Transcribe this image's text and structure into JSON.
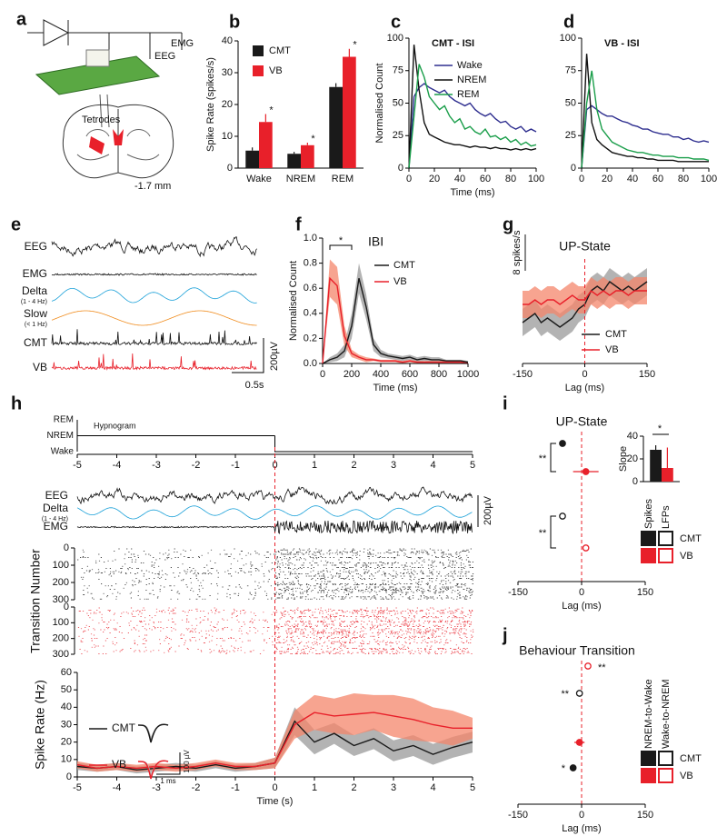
{
  "diagram": {
    "panel": "a",
    "labels": [
      "EMG",
      "EEG",
      "Tetrodes",
      "-1.7 mm"
    ]
  },
  "chart_data": [
    {
      "type": "bar",
      "panel": "b",
      "ylabel": "Spike Rate (spikes/s)",
      "categories": [
        "Wake",
        "NREM",
        "REM"
      ],
      "series": [
        {
          "name": "CMT",
          "color": "#1a1a1a",
          "values": [
            5.5,
            4.5,
            25.5
          ],
          "errors": [
            1,
            0.6,
            1.2
          ]
        },
        {
          "name": "VB",
          "color": "#e8202a",
          "values": [
            14.5,
            7.2,
            35
          ],
          "errors": [
            2.5,
            0.8,
            2.5
          ]
        }
      ],
      "ylim": [
        0,
        40
      ],
      "yticks": [
        0,
        10,
        20,
        30,
        40
      ],
      "annotations": [
        "*",
        "*",
        "*"
      ]
    },
    {
      "type": "line",
      "panel": "c",
      "title": "CMT - ISI",
      "xlabel": "Time (ms)",
      "ylabel": "Normalised Count",
      "x": [
        0,
        4,
        8,
        12,
        16,
        20,
        24,
        28,
        32,
        36,
        40,
        44,
        48,
        52,
        56,
        60,
        64,
        68,
        72,
        76,
        80,
        84,
        88,
        92,
        96,
        100
      ],
      "series": [
        {
          "name": "Wake",
          "color": "#2e2e8f",
          "values": [
            0,
            55,
            62,
            65,
            62,
            60,
            58,
            60,
            55,
            52,
            50,
            48,
            50,
            45,
            42,
            40,
            42,
            38,
            35,
            36,
            32,
            30,
            32,
            28,
            30,
            28
          ]
        },
        {
          "name": "NREM",
          "color": "#111111",
          "values": [
            0,
            95,
            60,
            35,
            26,
            24,
            22,
            20,
            19,
            18,
            18,
            17,
            16,
            17,
            16,
            16,
            15,
            16,
            15,
            15,
            14,
            15,
            14,
            15,
            14,
            15
          ]
        },
        {
          "name": "REM",
          "color": "#1a9e4a",
          "values": [
            0,
            40,
            80,
            70,
            55,
            50,
            45,
            48,
            40,
            35,
            38,
            30,
            32,
            28,
            26,
            30,
            24,
            25,
            22,
            24,
            20,
            22,
            18,
            20,
            17,
            18
          ]
        }
      ],
      "xlim": [
        0,
        100
      ],
      "xticks": [
        0,
        20,
        40,
        60,
        80,
        100
      ],
      "ylim": [
        0,
        100
      ],
      "yticks": [
        0,
        25,
        50,
        75,
        100
      ]
    },
    {
      "type": "line",
      "panel": "d",
      "title": "VB - ISI",
      "x": [
        0,
        4,
        8,
        12,
        16,
        20,
        24,
        28,
        32,
        36,
        40,
        44,
        48,
        52,
        56,
        60,
        64,
        68,
        72,
        76,
        80,
        84,
        88,
        92,
        96,
        100
      ],
      "series": [
        {
          "color": "#2e2e8f",
          "values": [
            0,
            45,
            48,
            45,
            42,
            40,
            40,
            38,
            36,
            35,
            33,
            32,
            30,
            30,
            28,
            27,
            26,
            26,
            24,
            24,
            22,
            23,
            21,
            20,
            21,
            20
          ]
        },
        {
          "color": "#111111",
          "values": [
            0,
            88,
            35,
            22,
            18,
            15,
            12,
            11,
            10,
            9,
            9,
            8,
            8,
            7,
            7,
            6,
            6,
            6,
            6,
            5,
            5,
            5,
            5,
            5,
            5,
            5
          ]
        },
        {
          "color": "#1a9e4a",
          "values": [
            0,
            50,
            75,
            45,
            30,
            25,
            20,
            18,
            16,
            14,
            13,
            12,
            12,
            11,
            10,
            10,
            9,
            9,
            9,
            8,
            8,
            8,
            7,
            7,
            7,
            6
          ]
        }
      ],
      "xlim": [
        0,
        100
      ],
      "xticks": [
        0,
        20,
        40,
        60,
        80,
        100
      ],
      "ylim": [
        0,
        100
      ],
      "yticks": [
        0,
        25,
        50,
        75,
        100
      ]
    },
    {
      "type": "traces",
      "panel": "e",
      "trace_labels": [
        {
          "label": "EEG"
        },
        {
          "label": "EMG"
        },
        {
          "label": "Delta",
          "sublabel": "(1 - 4 Hz)"
        },
        {
          "label": "Slow",
          "sublabel": "(< 1 Hz)"
        },
        {
          "label": "CMT"
        },
        {
          "label": "VB"
        }
      ],
      "scale_bars": [
        "200µV",
        "0.5s"
      ]
    },
    {
      "type": "line",
      "panel": "f",
      "title": "IBI",
      "xlabel": "Time (ms)",
      "ylabel": "Normalised Count",
      "x": [
        0,
        50,
        100,
        150,
        200,
        250,
        300,
        350,
        400,
        450,
        500,
        550,
        600,
        650,
        700,
        750,
        800,
        850,
        900,
        950,
        1000
      ],
      "series": [
        {
          "name": "CMT",
          "color": "#1a1a1a",
          "band": "#999999",
          "values": [
            0,
            0.03,
            0.05,
            0.1,
            0.3,
            0.68,
            0.45,
            0.15,
            0.08,
            0.06,
            0.05,
            0.04,
            0.05,
            0.03,
            0.04,
            0.03,
            0.03,
            0.02,
            0.02,
            0.02,
            0.01
          ],
          "errors": [
            0,
            0.02,
            0.03,
            0.05,
            0.1,
            0.12,
            0.1,
            0.05,
            0.03,
            0.02,
            0.02,
            0.02,
            0.02,
            0.02,
            0.02,
            0.02,
            0.02,
            0.01,
            0.01,
            0.01,
            0.01
          ]
        },
        {
          "name": "VB",
          "color": "#e8202a",
          "band": "#f4866b",
          "values": [
            0,
            0.68,
            0.62,
            0.22,
            0.08,
            0.05,
            0.03,
            0.03,
            0.02,
            0.02,
            0.02,
            0.01,
            0.02,
            0.01,
            0.01,
            0.01,
            0.01,
            0.01,
            0.01,
            0.01,
            0
          ],
          "errors": [
            0,
            0.15,
            0.15,
            0.08,
            0.03,
            0.02,
            0.02,
            0.01,
            0.01,
            0.01,
            0.01,
            0.01,
            0.01,
            0.01,
            0.01,
            0.01,
            0.01,
            0.01,
            0.01,
            0.01,
            0
          ]
        }
      ],
      "xlim": [
        0,
        1000
      ],
      "xticks": [
        0,
        200,
        400,
        600,
        800,
        1000
      ],
      "ylim": [
        0,
        1
      ],
      "yticks": [
        {
          "value": 0,
          "label": "0.0"
        },
        0.2,
        0.4,
        0.6,
        0.8,
        {
          "value": 1,
          "label": "1.0"
        }
      ],
      "annotations": [
        "*"
      ]
    },
    {
      "type": "line",
      "panel": "g",
      "title": "UP-State",
      "xlabel": "Lag (ms)",
      "scale_bar": {
        "value": 8,
        "label": "8 spikes/s"
      },
      "x": [
        -150,
        -135,
        -120,
        -105,
        -90,
        -75,
        -60,
        -45,
        -30,
        -15,
        0,
        15,
        30,
        45,
        60,
        75,
        90,
        105,
        120,
        135,
        150
      ],
      "series": [
        {
          "name": "CMT",
          "color": "#1a1a1a",
          "band": "#999999",
          "values": [
            5,
            6,
            7,
            5,
            6,
            5,
            4,
            5,
            6,
            8,
            9,
            12,
            13,
            12,
            14,
            13,
            12,
            13,
            12,
            13,
            14
          ],
          "errors": [
            3,
            3,
            3,
            3,
            3,
            3,
            3,
            3,
            3,
            3,
            3,
            3,
            3,
            3,
            3,
            3,
            3,
            3,
            3,
            3,
            3
          ]
        },
        {
          "name": "VB",
          "color": "#e8202a",
          "band": "#f4866b",
          "values": [
            9,
            9,
            10,
            9,
            10,
            10,
            9,
            10,
            11,
            10,
            10,
            12,
            11,
            12,
            11,
            12,
            12,
            11,
            12,
            12,
            12
          ],
          "errors": [
            3,
            3,
            3,
            3,
            3,
            3,
            3,
            3,
            3,
            3,
            3,
            3,
            3,
            3,
            3,
            3,
            3,
            3,
            3,
            3,
            3
          ]
        }
      ],
      "xlim": [
        -150,
        150
      ],
      "xticks": [
        -150,
        0,
        150
      ]
    },
    {
      "type": "step",
      "panel": "h",
      "title": "Hypnogram",
      "states": [
        "REM",
        "NREM",
        "Wake"
      ],
      "segments": [
        {
          "state": "NREM",
          "x": [
            -5,
            0
          ]
        },
        {
          "state": "Wake",
          "x": [
            0,
            5
          ]
        }
      ],
      "xlim": [
        -5,
        5
      ],
      "xticks": [
        -5,
        -4,
        -3,
        -2,
        -1,
        0,
        1,
        2,
        3,
        4,
        5
      ]
    },
    {
      "type": "traces",
      "trace_labels": [
        {
          "label": "EEG"
        },
        {
          "label": "Delta",
          "sublabel": "(1 - 4 Hz)"
        },
        {
          "label": "EMG"
        }
      ],
      "scale_bars": [
        "200µV"
      ]
    },
    {
      "type": "raster",
      "ylabel": "Transition Number",
      "colors": [
        "#111111",
        "#e8202a"
      ],
      "ylim": [
        0,
        300
      ],
      "yticks": [
        0,
        100,
        200,
        300
      ]
    },
    {
      "type": "line",
      "xlabel": "Time (s)",
      "ylabel": "Spike Rate (Hz)",
      "inset_labels": [
        "100 µV",
        "1 ms"
      ],
      "x": [
        -5,
        -4.5,
        -4,
        -3.5,
        -3,
        -2.5,
        -2,
        -1.5,
        -1,
        -0.5,
        0,
        0.5,
        1,
        1.5,
        2,
        2.5,
        3,
        3.5,
        4,
        4.5,
        5
      ],
      "series": [
        {
          "name": "CMT",
          "color": "#1a1a1a",
          "band": "#999999",
          "values": [
            6,
            5,
            6,
            4,
            5,
            6,
            5,
            7,
            5,
            6,
            8,
            32,
            20,
            25,
            18,
            22,
            15,
            18,
            13,
            17,
            20
          ],
          "errors": [
            2,
            2,
            2,
            2,
            2,
            2,
            2,
            2,
            2,
            2,
            3,
            8,
            7,
            6,
            6,
            6,
            6,
            6,
            6,
            6,
            6
          ]
        },
        {
          "name": "VB",
          "color": "#e8202a",
          "band": "#f4866b",
          "values": [
            7,
            5,
            6,
            5,
            6,
            5,
            6,
            8,
            6,
            6,
            8,
            30,
            37,
            35,
            36,
            37,
            35,
            33,
            30,
            28,
            28
          ],
          "errors": [
            2,
            2,
            2,
            2,
            2,
            2,
            2,
            2,
            2,
            2,
            3,
            8,
            10,
            10,
            12,
            10,
            12,
            12,
            10,
            10,
            6
          ]
        }
      ],
      "xlim": [
        -5,
        5
      ],
      "xticks": [
        -5,
        -4,
        -3,
        -2,
        -1,
        0,
        1,
        2,
        3,
        4,
        5
      ],
      "ylim": [
        0,
        60
      ],
      "yticks": [
        0,
        10,
        20,
        30,
        40,
        50,
        60
      ]
    },
    {
      "type": "dot",
      "panel": "i",
      "title": "UP-State",
      "xlabel": "Lag (ms)",
      "columns": [
        "Spikes",
        "LFPs"
      ],
      "series": [
        {
          "name": "CMT",
          "color": "#1a1a1a",
          "values": [
            -45,
            -45
          ],
          "errors": [
            6,
            3
          ]
        },
        {
          "name": "VB",
          "color": "#e8202a",
          "values": [
            10,
            10
          ],
          "errors": [
            30,
            5
          ]
        }
      ],
      "xlim": [
        -150,
        150
      ],
      "xticks": [
        -150,
        0,
        150
      ],
      "annotations": [
        "**",
        "**"
      ]
    },
    {
      "type": "bar",
      "ylabel": "Slope",
      "categories": [
        null
      ],
      "series": [
        {
          "color": "#1a1a1a",
          "values": [
            28
          ],
          "errors": [
            4
          ]
        },
        {
          "color": "#e8202a",
          "values": [
            12
          ],
          "errors": [
            18
          ]
        }
      ],
      "ylim": [
        0,
        40
      ],
      "yticks": [
        0,
        20,
        40
      ],
      "annotations": [
        "*"
      ]
    },
    {
      "type": "dot",
      "panel": "j",
      "title": "Behaviour Transition",
      "xlabel": "Lag (ms)",
      "columns": [
        "NREM-to-Wake",
        "Wake-to-NREM"
      ],
      "series": [
        {
          "name": "CMT",
          "color": "#1a1a1a",
          "values": [
            -20,
            -5
          ],
          "errors": [
            4,
            3
          ]
        },
        {
          "name": "VB",
          "color": "#e8202a",
          "values": [
            -5,
            15
          ],
          "errors": [
            12,
            4
          ]
        }
      ],
      "xlim": [
        -150,
        150
      ],
      "xticks": [
        -150,
        0,
        150
      ],
      "annotations": [
        "*",
        "**",
        "**"
      ]
    }
  ]
}
